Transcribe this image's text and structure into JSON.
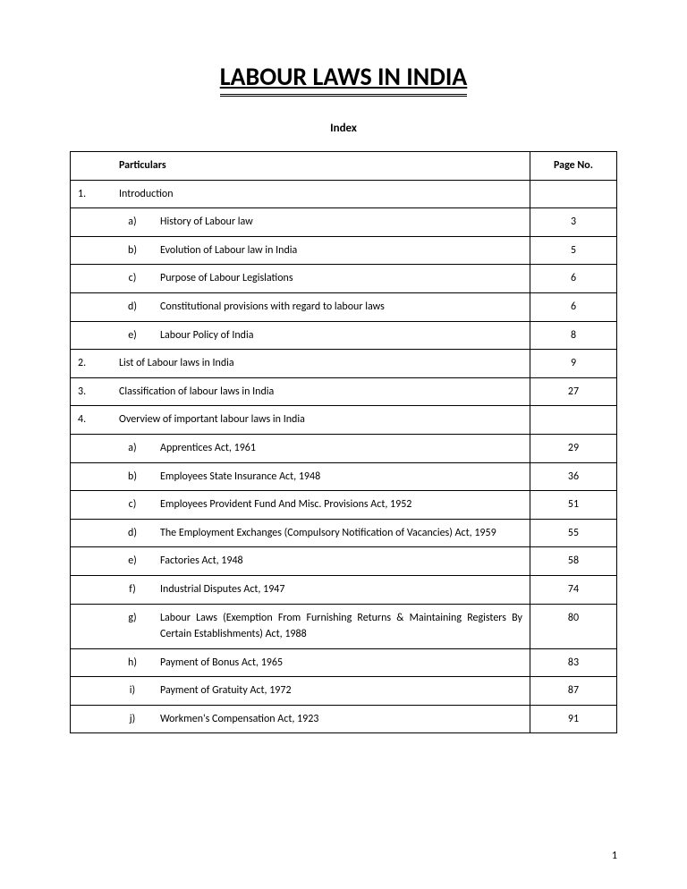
{
  "page": {
    "title": "LABOUR LAWS IN INDIA",
    "index_label": "Index",
    "page_number": "1",
    "background_color": "#ffffff",
    "text_color": "#000000",
    "font_family": "Calibri, Arial, sans-serif",
    "title_fontsize": 28
  },
  "table": {
    "headers": {
      "particulars": "Particulars",
      "page_no": "Page No."
    },
    "rows": [
      {
        "num": "1.",
        "sub": "",
        "text": "Introduction",
        "page": ""
      },
      {
        "num": "",
        "sub": "a)",
        "text": "History of Labour law",
        "page": "3"
      },
      {
        "num": "",
        "sub": "b)",
        "text": "Evolution of Labour law in India",
        "page": "5"
      },
      {
        "num": "",
        "sub": "c)",
        "text": "Purpose of Labour Legislations",
        "page": "6"
      },
      {
        "num": "",
        "sub": "d)",
        "text": "Constitutional provisions with regard to labour laws",
        "page": "6"
      },
      {
        "num": "",
        "sub": "e)",
        "text": "Labour Policy of India",
        "page": "8"
      },
      {
        "num": "2.",
        "sub": "",
        "text": "List of Labour laws in India",
        "page": "9"
      },
      {
        "num": "3.",
        "sub": "",
        "text": "Classification of labour laws in India",
        "page": "27"
      },
      {
        "num": "4.",
        "sub": "",
        "text": "Overview of important labour laws in India",
        "page": ""
      },
      {
        "num": "",
        "sub": "a)",
        "text": "Apprentices Act, 1961",
        "page": "29"
      },
      {
        "num": "",
        "sub": "b)",
        "text": "Employees State Insurance Act, 1948",
        "page": "36"
      },
      {
        "num": "",
        "sub": "c)",
        "text": "Employees Provident Fund And Misc. Provisions Act, 1952",
        "page": "51"
      },
      {
        "num": "",
        "sub": "d)",
        "text": "The Employment Exchanges (Compulsory Notification of Vacancies) Act, 1959",
        "page": "55"
      },
      {
        "num": "",
        "sub": "e)",
        "text": "Factories Act, 1948",
        "page": "58"
      },
      {
        "num": "",
        "sub": "f)",
        "text": "Industrial Disputes Act, 1947",
        "page": "74"
      },
      {
        "num": "",
        "sub": "g)",
        "text": "Labour Laws (Exemption From Furnishing Returns & Maintaining Registers By Certain Establishments) Act, 1988",
        "page": "80"
      },
      {
        "num": "",
        "sub": "h)",
        "text": "Payment of Bonus Act, 1965",
        "page": "83"
      },
      {
        "num": "",
        "sub": "i)",
        "text": "Payment of Gratuity Act, 1972",
        "page": "87"
      },
      {
        "num": "",
        "sub": "j)",
        "text": "Workmen's Compensation Act, 1923",
        "page": "91"
      }
    ]
  }
}
